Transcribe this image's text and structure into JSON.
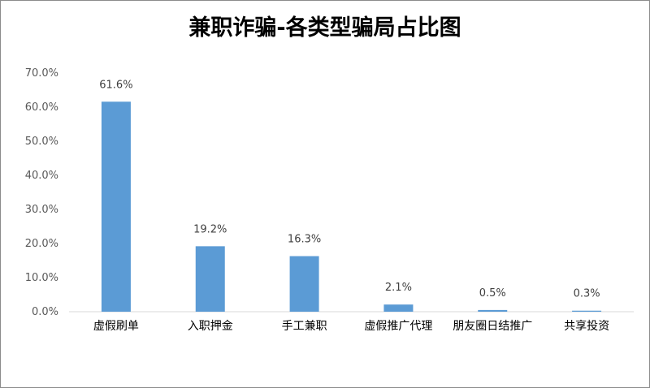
{
  "chart_data": {
    "type": "bar",
    "title": "兼职诈骗-各类型骗局占比图",
    "categories": [
      "虚假刷单",
      "入职押金",
      "手工兼职",
      "虚假推广代理",
      "朋友圈日结推广",
      "共享投资"
    ],
    "values": [
      61.6,
      19.2,
      16.3,
      2.1,
      0.5,
      0.3
    ],
    "data_labels": [
      "61.6%",
      "19.2%",
      "16.3%",
      "2.1%",
      "0.5%",
      "0.3%"
    ],
    "y_ticks": [
      "0.0%",
      "10.0%",
      "20.0%",
      "30.0%",
      "40.0%",
      "50.0%",
      "60.0%",
      "70.0%"
    ],
    "ylim": [
      0,
      70
    ],
    "xlabel": "",
    "ylabel": "",
    "grid": false,
    "legend": "none",
    "bar_color": "#5b9bd5"
  }
}
